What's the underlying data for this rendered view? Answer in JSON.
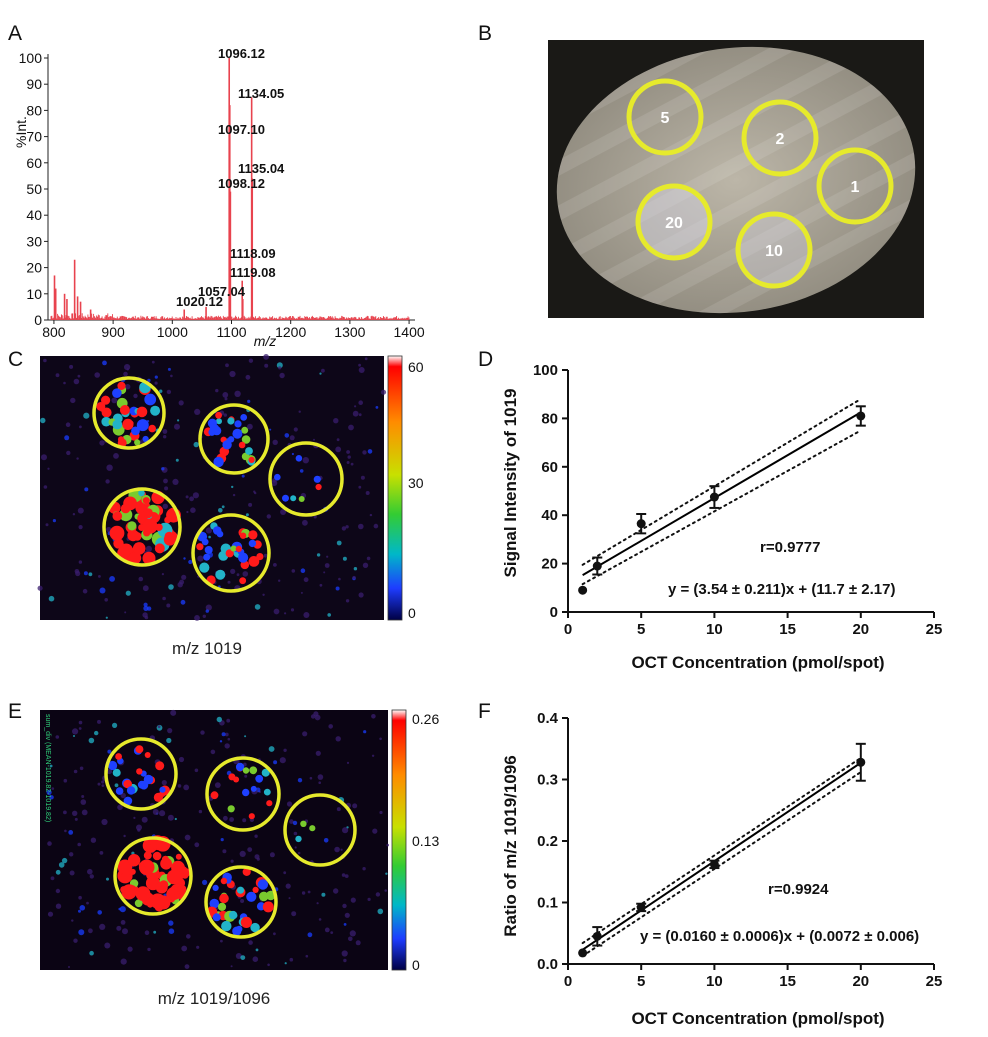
{
  "panel_labels": {
    "a": "A",
    "b": "B",
    "c": "C",
    "d": "D",
    "e": "E",
    "f": "F"
  },
  "colors": {
    "spectrum": "#e8434e",
    "roi_circle": "#e6ea2c",
    "heat_high": "#ff1a1a",
    "heat_mid": "#9acd32",
    "heat_low": "#00008b",
    "fit_line": "#000000"
  },
  "tissue_circles": [
    "5",
    "2",
    "1",
    "20",
    "10"
  ],
  "heatmap_c": {
    "caption": "m/z 1019",
    "scale_ticks": [
      "60",
      "30",
      "0"
    ]
  },
  "heatmap_e": {
    "caption": "m/z 1019/1096",
    "scale_ticks": [
      "0.26",
      "0.13",
      "0"
    ],
    "overlay_text": "sum_div (MEAN-1019.82-1019.82)"
  },
  "chart_data": [
    {
      "panel": "A",
      "type": "line",
      "ylabel": "%Int.",
      "xlabel": "m/z",
      "xlim": [
        790,
        1410
      ],
      "ylim": [
        0,
        100
      ],
      "xticks": [
        800,
        900,
        1000,
        1100,
        1200,
        1300,
        1400
      ],
      "yticks": [
        0,
        10,
        20,
        30,
        40,
        50,
        60,
        70,
        80,
        90,
        100
      ],
      "peaks": [
        {
          "mz": 801,
          "value": 17
        },
        {
          "mz": 803,
          "value": 12
        },
        {
          "mz": 818,
          "value": 10
        },
        {
          "mz": 822,
          "value": 8
        },
        {
          "mz": 835,
          "value": 23
        },
        {
          "mz": 840,
          "value": 9
        },
        {
          "mz": 845,
          "value": 7
        },
        {
          "mz": 862,
          "value": 4
        },
        {
          "mz": 1020.12,
          "value": 4
        },
        {
          "mz": 1057.04,
          "value": 5
        },
        {
          "mz": 1096.12,
          "value": 100
        },
        {
          "mz": 1097.1,
          "value": 82
        },
        {
          "mz": 1098.12,
          "value": 49
        },
        {
          "mz": 1118.09,
          "value": 15
        },
        {
          "mz": 1119.08,
          "value": 8
        },
        {
          "mz": 1134.05,
          "value": 85
        },
        {
          "mz": 1135.04,
          "value": 54
        }
      ],
      "peak_labels": [
        {
          "text": "1096.12"
        },
        {
          "text": "1134.05"
        },
        {
          "text": "1097.10"
        },
        {
          "text": "1135.04"
        },
        {
          "text": "1098.12"
        },
        {
          "text": "1118.09"
        },
        {
          "text": "1119.08"
        },
        {
          "text": "1057.04"
        },
        {
          "text": "1020.12"
        }
      ]
    },
    {
      "panel": "D",
      "type": "scatter",
      "xlabel": "OCT Concentration (pmol/spot)",
      "ylabel": "Signal Intensity of 1019",
      "xlim": [
        0,
        25
      ],
      "ylim": [
        0,
        100
      ],
      "xticks": [
        0,
        5,
        10,
        15,
        20,
        25
      ],
      "yticks": [
        0,
        20,
        40,
        60,
        80,
        100
      ],
      "points": [
        {
          "x": 1,
          "y": 9,
          "err": 0
        },
        {
          "x": 2,
          "y": 19,
          "err": 3.5
        },
        {
          "x": 5,
          "y": 36.5,
          "err": 4
        },
        {
          "x": 10,
          "y": 47.5,
          "err": 4.5
        },
        {
          "x": 20,
          "y": 81,
          "err": 4
        }
      ],
      "fit": {
        "slope": 3.54,
        "intercept": 11.7
      },
      "ci": {
        "lower": [
          [
            1,
            11.5
          ],
          [
            20,
            75
          ]
        ],
        "upper": [
          [
            1,
            19.5
          ],
          [
            20,
            88
          ]
        ]
      },
      "annotations": {
        "r": "r=0.9777",
        "equation": "y = (3.54 ± 0.211)x + (11.7 ± 2.17)"
      }
    },
    {
      "panel": "F",
      "type": "scatter",
      "xlabel": "OCT Concentration (pmol/spot)",
      "ylabel": "Ratio of m/z 1019/1096",
      "xlim": [
        0,
        25
      ],
      "ylim": [
        0,
        0.4
      ],
      "xticks": [
        0,
        5,
        10,
        15,
        20,
        25
      ],
      "yticks": [
        0.0,
        0.1,
        0.2,
        0.3,
        0.4
      ],
      "ytick_labels": [
        "0.0",
        "0.1",
        "0.2",
        "0.3",
        "0.4"
      ],
      "points": [
        {
          "x": 1,
          "y": 0.018,
          "err": 0
        },
        {
          "x": 2,
          "y": 0.045,
          "err": 0.015
        },
        {
          "x": 5,
          "y": 0.092,
          "err": 0.006
        },
        {
          "x": 10,
          "y": 0.162,
          "err": 0.006
        },
        {
          "x": 20,
          "y": 0.328,
          "err": 0.03
        }
      ],
      "fit": {
        "slope": 0.016,
        "intercept": 0.0072
      },
      "ci": {
        "lower": [
          [
            1,
            0.013
          ],
          [
            20,
            0.312
          ]
        ],
        "upper": [
          [
            1,
            0.034
          ],
          [
            20,
            0.335
          ]
        ]
      },
      "annotations": {
        "r": "r=0.9924",
        "equation": "y = (0.0160 ± 0.0006)x + (0.0072 ± 0.006)"
      }
    }
  ]
}
